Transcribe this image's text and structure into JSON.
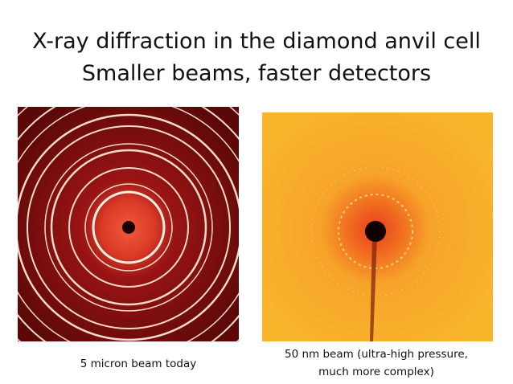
{
  "title": [
    "X-ray diffraction in the diamond anvil cell",
    "Smaller beams, faster detectors"
  ],
  "images": [
    {
      "caption": [
        "5 micron beam today"
      ]
    },
    {
      "caption": [
        "50 nm beam (ultra-high pressure,",
        "much more complex)"
      ]
    }
  ]
}
